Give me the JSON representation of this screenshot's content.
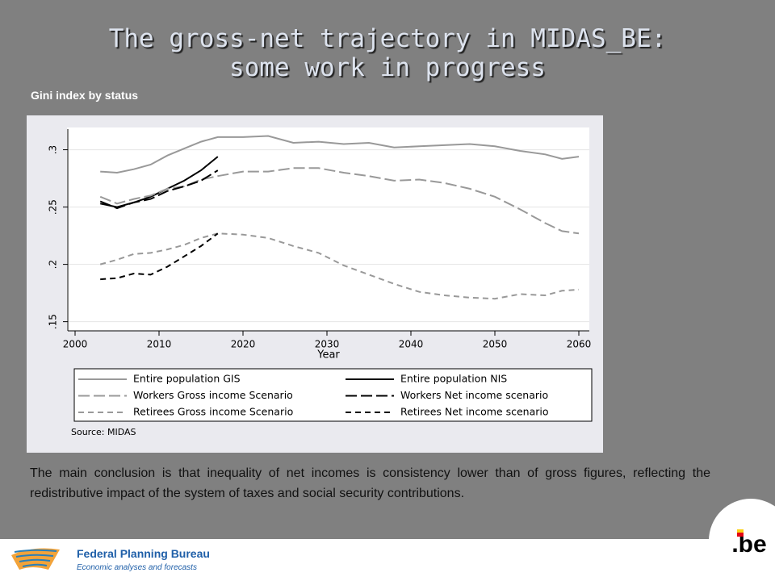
{
  "slide": {
    "title": [
      "The gross-net trajectory in MIDAS_BE:",
      "some work in progress"
    ],
    "subtitle": "Gini index by status",
    "body": "The main conclusion is that inequality of net incomes is consistency lower than of gross figures, reflecting the redistributive impact of the system of taxes and social security contributions.",
    "footer": {
      "org": "Federal Planning Bureau",
      "tagline": "Economic analyses and forecasts",
      "logo": ".be"
    }
  },
  "chart_data": {
    "type": "line",
    "xlabel": "Year",
    "note": "Source: MIDAS",
    "x": [
      2003,
      2005,
      2007,
      2009,
      2011,
      2013,
      2015,
      2017,
      2020,
      2023,
      2026,
      2029,
      2032,
      2035,
      2038,
      2041,
      2044,
      2047,
      2050,
      2053,
      2056,
      2058,
      2060
    ],
    "xlim": [
      2000,
      2061
    ],
    "xticks": [
      2000,
      2010,
      2020,
      2030,
      2040,
      2050,
      2060
    ],
    "ylim": [
      0.142,
      0.318
    ],
    "yticks": [
      {
        "value": 0.15,
        "label": ".15"
      },
      {
        "value": 0.2,
        "label": ".2"
      },
      {
        "value": 0.25,
        "label": ".25"
      },
      {
        "value": 0.3,
        "label": ".3"
      }
    ],
    "grid": true,
    "series": [
      {
        "name": "Entire population GIS",
        "color": "#999999",
        "dash": "solid",
        "values": [
          0.281,
          0.28,
          0.283,
          0.287,
          0.295,
          0.301,
          0.307,
          0.311,
          0.311,
          0.312,
          0.306,
          0.307,
          0.305,
          0.306,
          0.302,
          0.303,
          0.304,
          0.305,
          0.303,
          0.299,
          0.296,
          0.292,
          0.294
        ]
      },
      {
        "name": "Entire population NIS",
        "color": "#000000",
        "dash": "solid",
        "values": [
          0.253,
          0.25,
          0.254,
          0.259,
          0.266,
          0.273,
          0.282,
          0.294,
          null,
          null,
          null,
          null,
          null,
          null,
          null,
          null,
          null,
          null,
          null,
          null,
          null,
          null,
          null
        ]
      },
      {
        "name": "Workers Gross income Scenario",
        "color": "#999999",
        "dash": "long",
        "values": [
          0.259,
          0.253,
          0.257,
          0.26,
          0.266,
          0.268,
          0.274,
          0.277,
          0.281,
          0.281,
          0.284,
          0.284,
          0.28,
          0.277,
          0.273,
          0.274,
          0.271,
          0.266,
          0.259,
          0.248,
          0.236,
          0.229,
          0.227
        ]
      },
      {
        "name": "Workers Net income scenario",
        "color": "#000000",
        "dash": "long",
        "values": [
          0.255,
          0.249,
          0.254,
          0.257,
          0.264,
          0.268,
          0.273,
          0.282,
          null,
          null,
          null,
          null,
          null,
          null,
          null,
          null,
          null,
          null,
          null,
          null,
          null,
          null,
          null
        ]
      },
      {
        "name": "Retirees Gross income Scenario",
        "color": "#999999",
        "dash": "short",
        "values": [
          0.2,
          0.204,
          0.209,
          0.21,
          0.213,
          0.217,
          0.223,
          0.227,
          0.226,
          0.223,
          0.216,
          0.21,
          0.199,
          0.191,
          0.183,
          0.176,
          0.173,
          0.171,
          0.17,
          0.174,
          0.173,
          0.177,
          0.178
        ]
      },
      {
        "name": "Retirees Net income scenario",
        "color": "#000000",
        "dash": "short",
        "values": [
          0.187,
          0.188,
          0.192,
          0.191,
          0.198,
          0.207,
          0.216,
          0.227,
          null,
          null,
          null,
          null,
          null,
          null,
          null,
          null,
          null,
          null,
          null,
          null,
          null,
          null,
          null
        ]
      }
    ]
  }
}
